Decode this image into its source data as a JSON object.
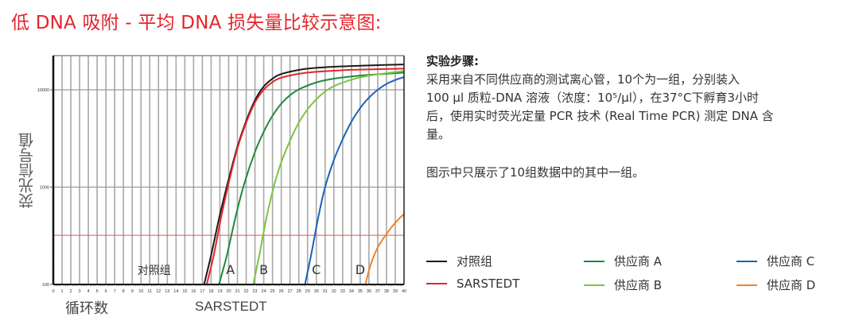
{
  "page": {
    "title": "低 DNA 吸附 - 平均 DNA 损失量比较示意图:",
    "steps_title": "实验步骤:",
    "steps_lines": [
      "采用来自不同供应商的测试离心管，10个为一组，分别装入",
      "100 µl 质粒-DNA 溶液（浓度：10⁵/µl），在37°C下孵育3小时",
      "后，使用实时荧光定量 PCR 技术 (Real Time PCR) 测定 DNA 含",
      "量。"
    ],
    "note": "图示中只展示了10组数据中的其中一组。"
  },
  "chart_data": {
    "type": "line",
    "title": "",
    "xlabel": "循环数",
    "ylabel": "荧光信号值",
    "x_sublabel": "SARSTEDT",
    "xlim": [
      0,
      40
    ],
    "ylim": [
      100,
      22000
    ],
    "yscale": "log",
    "x_ticks": [
      0,
      1,
      2,
      3,
      4,
      5,
      6,
      7,
      8,
      9,
      10,
      11,
      12,
      13,
      14,
      15,
      16,
      17,
      18,
      19,
      20,
      21,
      22,
      23,
      24,
      25,
      26,
      27,
      28,
      29,
      30,
      31,
      32,
      33,
      34,
      35,
      36,
      37,
      38,
      39,
      40
    ],
    "y_ticks": [
      100,
      1000,
      10000
    ],
    "y_tick_labels": [
      "100",
      "1000",
      "10000"
    ],
    "grid": true,
    "threshold": 320,
    "threshold_color": "#e8524f",
    "annotations": [
      {
        "text": "对照组",
        "x": 11.5,
        "y": 128
      },
      {
        "text": "A",
        "x": 20.2,
        "y": 128
      },
      {
        "text": "B",
        "x": 24.0,
        "y": 128
      },
      {
        "text": "C",
        "x": 30.0,
        "y": 128
      },
      {
        "text": "D",
        "x": 35.0,
        "y": 128
      }
    ],
    "series": [
      {
        "name": "对照组",
        "color": "#1a1a1a",
        "points": [
          [
            17.2,
            100
          ],
          [
            18.0,
            200
          ],
          [
            19.0,
            520
          ],
          [
            20.0,
            1200
          ],
          [
            21.0,
            2600
          ],
          [
            22.0,
            4800
          ],
          [
            23.0,
            7800
          ],
          [
            24.0,
            10800
          ],
          [
            25.0,
            13000
          ],
          [
            26.0,
            14500
          ],
          [
            28.0,
            16000
          ],
          [
            30.0,
            16800
          ],
          [
            33.0,
            17400
          ],
          [
            36.0,
            17800
          ],
          [
            40.0,
            18200
          ]
        ]
      },
      {
        "name": "SARSTEDT",
        "color": "#e3242b",
        "points": [
          [
            17.5,
            100
          ],
          [
            18.3,
            200
          ],
          [
            19.2,
            520
          ],
          [
            20.1,
            1200
          ],
          [
            21.0,
            2500
          ],
          [
            22.0,
            4600
          ],
          [
            23.0,
            7400
          ],
          [
            24.0,
            10000
          ],
          [
            25.0,
            12000
          ],
          [
            26.0,
            13300
          ],
          [
            28.0,
            14600
          ],
          [
            30.0,
            15300
          ],
          [
            33.0,
            15900
          ],
          [
            36.0,
            16200
          ],
          [
            40.0,
            16500
          ]
        ]
      },
      {
        "name": "供应商 A",
        "color": "#1e8a3e",
        "points": [
          [
            18.9,
            100
          ],
          [
            19.8,
            200
          ],
          [
            20.8,
            500
          ],
          [
            21.8,
            1100
          ],
          [
            23.0,
            2300
          ],
          [
            24.0,
            3700
          ],
          [
            25.0,
            5400
          ],
          [
            26.0,
            7200
          ],
          [
            27.0,
            8800
          ],
          [
            28.0,
            10100
          ],
          [
            30.0,
            11900
          ],
          [
            32.0,
            13000
          ],
          [
            35.0,
            14000
          ],
          [
            40.0,
            15000
          ]
        ]
      },
      {
        "name": "供应商 B",
        "color": "#7cc442",
        "points": [
          [
            22.8,
            100
          ],
          [
            23.5,
            200
          ],
          [
            24.3,
            480
          ],
          [
            25.2,
            1050
          ],
          [
            26.0,
            1800
          ],
          [
            27.0,
            3000
          ],
          [
            28.0,
            4600
          ],
          [
            29.0,
            6300
          ],
          [
            30.0,
            8000
          ],
          [
            31.0,
            9600
          ],
          [
            32.0,
            10900
          ],
          [
            34.0,
            12700
          ],
          [
            36.0,
            14000
          ],
          [
            40.0,
            15600
          ]
        ]
      },
      {
        "name": "供应商 C",
        "color": "#1c62b8",
        "points": [
          [
            28.7,
            100
          ],
          [
            29.4,
            200
          ],
          [
            30.2,
            480
          ],
          [
            31.0,
            1000
          ],
          [
            32.0,
            1900
          ],
          [
            33.0,
            3100
          ],
          [
            34.0,
            4700
          ],
          [
            35.0,
            6500
          ],
          [
            36.0,
            8300
          ],
          [
            37.0,
            10000
          ],
          [
            38.0,
            11500
          ],
          [
            39.0,
            12600
          ],
          [
            40.0,
            13500
          ]
        ]
      },
      {
        "name": "供应商 D",
        "color": "#f0822c",
        "points": [
          [
            35.6,
            100
          ],
          [
            36.0,
            140
          ],
          [
            36.5,
            190
          ],
          [
            37.0,
            240
          ],
          [
            37.5,
            285
          ],
          [
            38.0,
            330
          ],
          [
            38.5,
            380
          ],
          [
            39.0,
            430
          ],
          [
            39.5,
            480
          ],
          [
            40.0,
            530
          ]
        ]
      }
    ]
  },
  "legend": {
    "items": [
      {
        "label": "对照组",
        "color": "#1a1a1a"
      },
      {
        "label": "SARSTEDT",
        "color": "#e3242b"
      },
      {
        "label": "供应商 A",
        "color": "#1e8a3e"
      },
      {
        "label": "供应商 B",
        "color": "#7cc442"
      },
      {
        "label": "供应商 C",
        "color": "#1c62b8"
      },
      {
        "label": "供应商 D",
        "color": "#f0822c"
      }
    ]
  }
}
